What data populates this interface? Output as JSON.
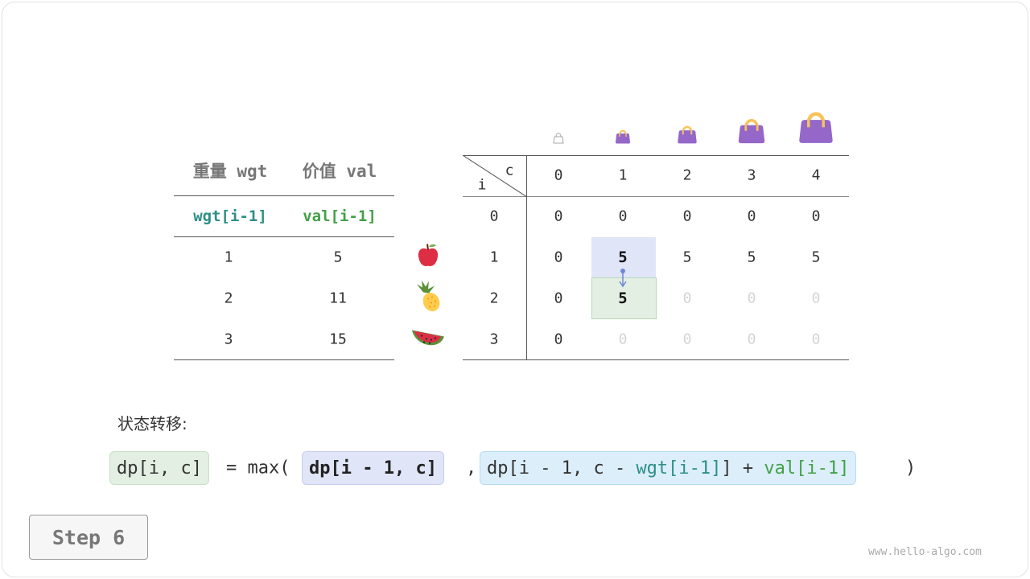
{
  "items_table": {
    "headers": [
      "重量 wgt",
      "价值 val"
    ],
    "subheaders": [
      "wgt[i-1]",
      "val[i-1]"
    ],
    "rows": [
      [
        "1",
        "5"
      ],
      [
        "2",
        "11"
      ],
      [
        "3",
        "15"
      ]
    ],
    "item_icons": [
      "apple-icon",
      "pineapple-icon",
      "watermelon-icon"
    ]
  },
  "dp_table": {
    "corner_row_label": "i",
    "corner_col_label": "c",
    "col_headers": [
      "0",
      "1",
      "2",
      "3",
      "4"
    ],
    "row_headers": [
      "0",
      "1",
      "2",
      "3"
    ],
    "cells": [
      [
        "0",
        "0",
        "0",
        "0",
        "0"
      ],
      [
        "0",
        "5",
        "5",
        "5",
        "5"
      ],
      [
        "0",
        "5",
        "0",
        "0",
        "0"
      ],
      [
        "0",
        "0",
        "0",
        "0",
        "0"
      ]
    ],
    "bag_icons": [
      "empty-bag-icon",
      "bag-icon",
      "bag-icon",
      "bag-icon",
      "bag-icon"
    ],
    "highlight_source": [
      1,
      1
    ],
    "highlight_target": [
      2,
      1
    ]
  },
  "formula": {
    "label": "状态转移:",
    "lhs": "dp[i, c]",
    "eq": "= max(",
    "term1": "dp[i - 1, c]",
    "comma": ",",
    "term2_a": "dp[i - 1, c - ",
    "term2_wgt": "wgt[i-1]",
    "term2_b": "] + ",
    "term2_val": "val[i-1]",
    "close": ")"
  },
  "step_label": "Step 6",
  "watermark": "www.hello-algo.com",
  "colors": {
    "source": "#e1e5f8",
    "target": "#e3efe3",
    "term2": "#dbeefa",
    "teal": "#2d8f86",
    "green": "#43a047",
    "bag": "#9467c9",
    "handle": "#f8c35b"
  }
}
